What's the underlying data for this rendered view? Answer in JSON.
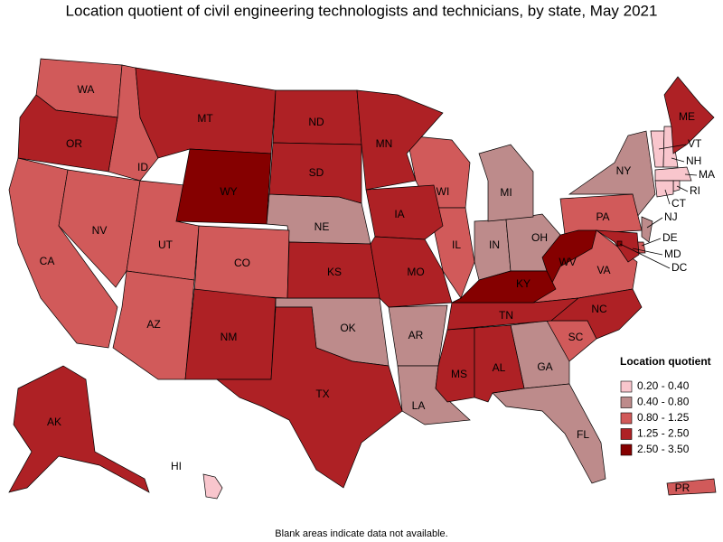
{
  "title": "Location quotient of civil engineering technologists and technicians, by state, May 2021",
  "note": "Blank areas indicate data not available.",
  "legend": {
    "title": "Location quotient",
    "items": [
      {
        "label": "0.20 - 0.40",
        "color": "#f9c6cd",
        "states": [
          "VT",
          "NH",
          "MA",
          "RI",
          "CT",
          "HI"
        ]
      },
      {
        "label": "0.40 - 0.80",
        "color": "#bd8b8b",
        "states": [
          "NE",
          "OK",
          "AR",
          "LA",
          "GA",
          "FL",
          "IN",
          "OH",
          "MI",
          "NY",
          "NJ"
        ]
      },
      {
        "label": "0.80 - 1.25",
        "color": "#d15a5a",
        "states": [
          "WA",
          "ID",
          "CA",
          "NV",
          "UT",
          "AZ",
          "CO",
          "WI",
          "IL",
          "PA",
          "VA",
          "SC",
          "PR",
          "DE"
        ]
      },
      {
        "label": "1.25 - 2.50",
        "color": "#ae2125",
        "states": [
          "OR",
          "MT",
          "ND",
          "SD",
          "MN",
          "IA",
          "KS",
          "MO",
          "NM",
          "TX",
          "MS",
          "AL",
          "TN",
          "NC",
          "ME",
          "AK",
          "MD"
        ]
      },
      {
        "label": "2.50 - 3.50",
        "color": "#850000",
        "states": [
          "WY",
          "WV",
          "KY",
          "DC"
        ]
      }
    ]
  }
}
